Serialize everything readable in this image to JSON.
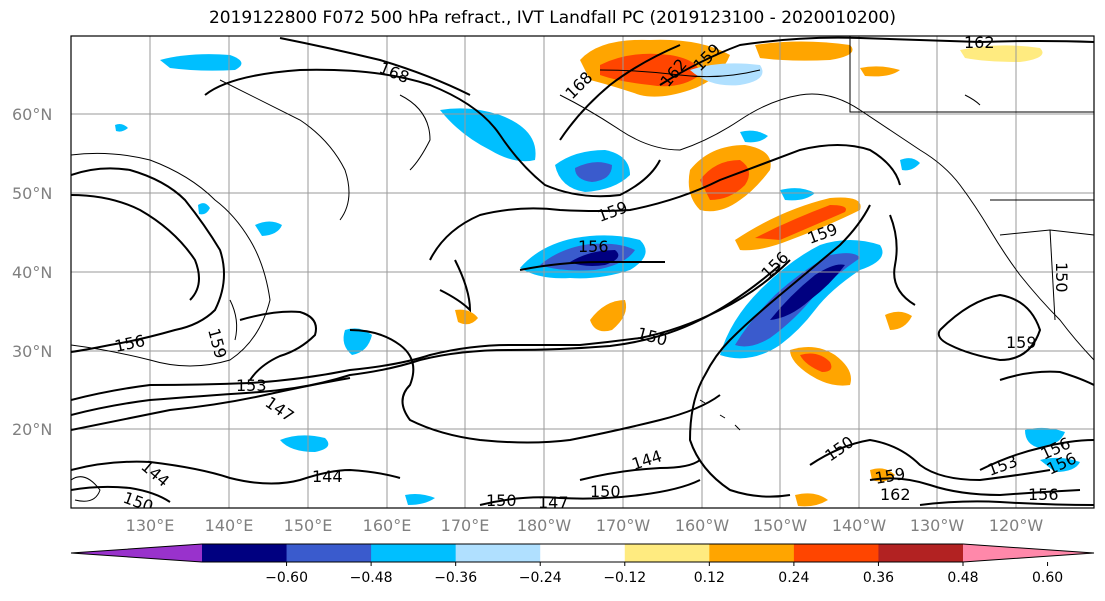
{
  "title": "2019122800 F072 500 hPa refract., IVT Landfall PC (2019123100 - 2020010200)",
  "lat_labels": [
    "60°N",
    "50°N",
    "40°N",
    "30°N",
    "20°N"
  ],
  "lon_labels": [
    "130°E",
    "140°E",
    "150°E",
    "160°E",
    "170°E",
    "180°W",
    "170°W",
    "160°W",
    "150°W",
    "140°W",
    "130°W",
    "120°W"
  ],
  "contour_labels": [
    "168",
    "168",
    "162",
    "162",
    "159",
    "159",
    "159",
    "156",
    "156",
    "156",
    "156",
    "156",
    "153",
    "153",
    "150",
    "150",
    "150",
    "150",
    "150",
    "147",
    "147",
    "144",
    "144",
    "144",
    "159",
    "159",
    "162",
    "156",
    "150",
    "159"
  ],
  "colorbar": {
    "ticks": [
      "−0.60",
      "−0.48",
      "−0.36",
      "−0.24",
      "−0.12",
      "0.12",
      "0.24",
      "0.36",
      "0.48",
      "0.60"
    ],
    "colors": [
      "#9932cc",
      "#000080",
      "#3a5bcd",
      "#00bfff",
      "#b0e0ff",
      "#ffffff",
      "#ffeb80",
      "#ffa500",
      "#ff4500",
      "#b22222",
      "#ff88aa"
    ]
  },
  "colors": {
    "negative_strong": "#000080",
    "negative_mid": "#3a5bcd",
    "negative_weak": "#00bfff",
    "negative_faint": "#b0e0ff",
    "positive_faint": "#ffeb80",
    "positive_weak": "#ffa500",
    "positive_mid": "#ff4500",
    "positive_strong": "#b22222"
  }
}
